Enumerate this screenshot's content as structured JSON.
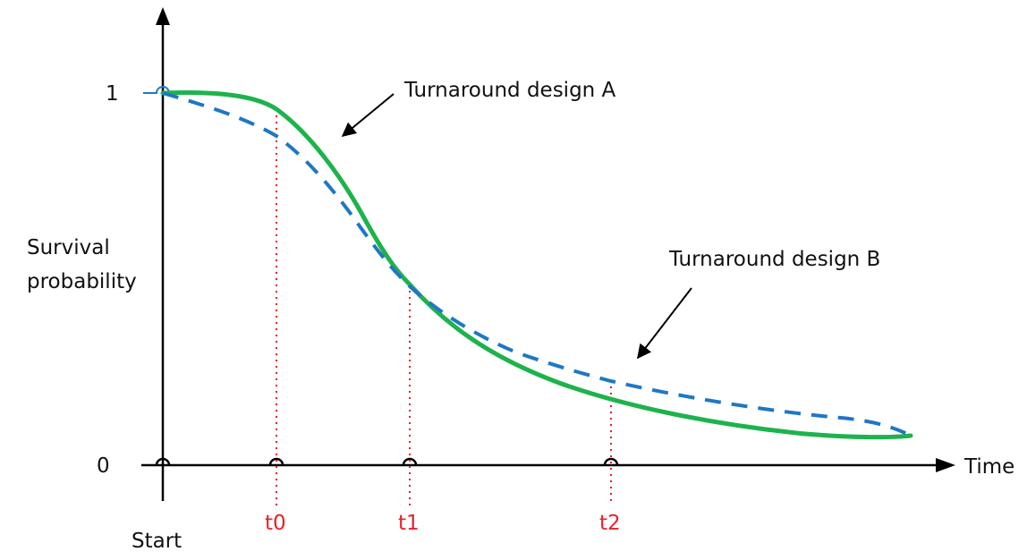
{
  "diagram": {
    "y_axis_label_line1": "Survival",
    "y_axis_label_line2": "probability",
    "y_tick_top": "1",
    "y_tick_bottom": "0",
    "x_axis_label": "Time",
    "x_start_label": "Start",
    "time_markers": [
      "t0",
      "t1",
      "t2"
    ],
    "curve_a_label": "Turnaround design A",
    "curve_b_label": "Turnaround design B",
    "colors": {
      "axis": "#000000",
      "curve_a": "#1db34c",
      "curve_b": "#1f77c4",
      "markers": "#e8202a"
    }
  }
}
